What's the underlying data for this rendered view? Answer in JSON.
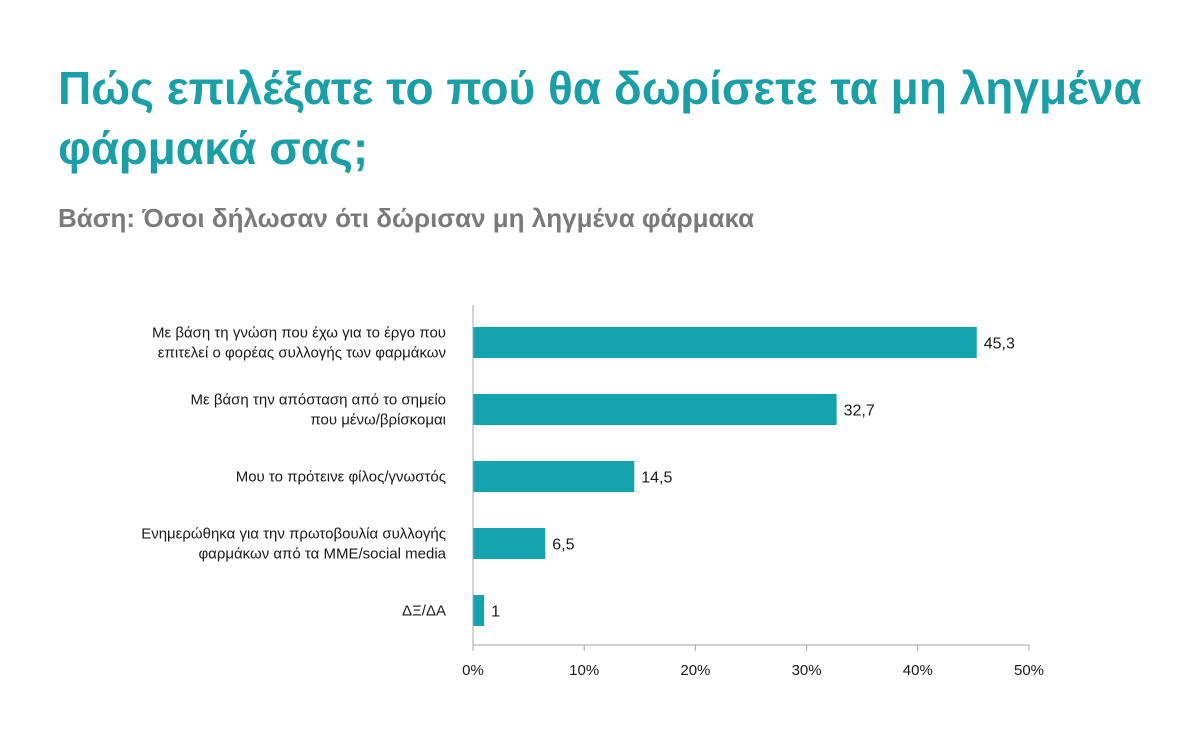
{
  "title": "Πώς επιλέξατε το πού θα δωρίσετε τα μη ληγμένα φάρμακά σας;",
  "subtitle": "Βάση: Όσοι δήλωσαν ότι δώρισαν μη ληγμένα φάρμακα",
  "colors": {
    "title": "#1a9fa6",
    "subtitle": "#7a7a7a",
    "bar": "#14a2ac",
    "text": "#1a1a1a",
    "axis": "#a6a6a6"
  },
  "chart_data": {
    "type": "bar",
    "orientation": "horizontal",
    "categories": [
      [
        "Με βάση τη γνώση που έχω για το έργο που",
        "επιτελεί ο φορέας συλλογής των φαρμάκων"
      ],
      [
        "Με βάση την απόσταση από το σημείο",
        "που μένω/βρίσκομαι"
      ],
      [
        "Μου το πρότεινε φίλος/γνωστός"
      ],
      [
        "Ενημερώθηκα για την πρωτοβουλία συλλογής",
        "φαρμάκων από τα ΜΜΕ/social media"
      ],
      [
        "ΔΞ/ΔΑ"
      ]
    ],
    "values": [
      45.3,
      32.7,
      14.5,
      6.5,
      1
    ],
    "value_labels": [
      "45,3",
      "32,7",
      "14,5",
      "6,5",
      "1"
    ],
    "xlim": [
      0,
      50
    ],
    "xticks": [
      0,
      10,
      20,
      30,
      40,
      50
    ],
    "xtick_labels": [
      "0%",
      "10%",
      "20%",
      "30%",
      "40%",
      "50%"
    ],
    "grid": false,
    "legend": "none"
  }
}
